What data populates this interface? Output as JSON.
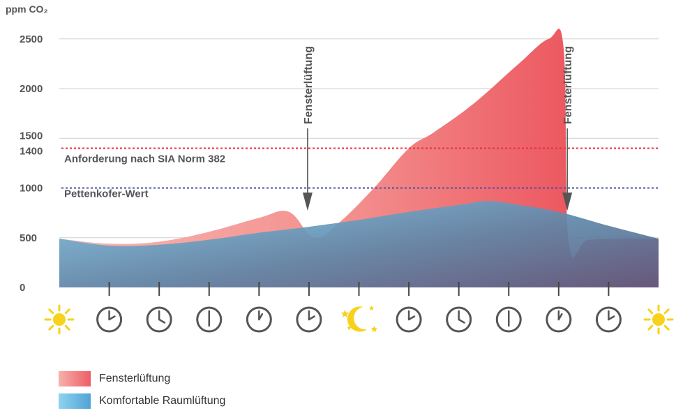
{
  "chart_data": {
    "type": "area",
    "ylabel": "ppm CO₂",
    "y_ticks": [
      0,
      500,
      1000,
      1400,
      1500,
      2000,
      2500
    ],
    "ylim": [
      0,
      2600
    ],
    "x_periods": [
      "sun",
      "clock-2",
      "clock-4",
      "clock-6",
      "clock-8",
      "clock-10",
      "night",
      "clock-2",
      "clock-4",
      "clock-6",
      "clock-8",
      "clock-10",
      "sun"
    ],
    "reference_lines": [
      {
        "label": "Anforderung nach SIA Norm 382",
        "value": 1400,
        "color": "#e8323c"
      },
      {
        "label": "Pettenkofer-Wert",
        "value": 1000,
        "color": "#4a4fa6"
      }
    ],
    "annotations": [
      {
        "text": "Fensterlüftung",
        "x_index": 5
      },
      {
        "text": "Fensterlüftung",
        "x_index": 10.2
      }
    ],
    "series": [
      {
        "name": "Fensterlüftung",
        "color": "#ef5a63",
        "points": [
          [
            0,
            490
          ],
          [
            1,
            440
          ],
          [
            2,
            460
          ],
          [
            3,
            560
          ],
          [
            4,
            700
          ],
          [
            4.6,
            760
          ],
          [
            5.1,
            500
          ],
          [
            5.6,
            650
          ],
          [
            6.3,
            1000
          ],
          [
            7,
            1400
          ],
          [
            7.5,
            1560
          ],
          [
            8.3,
            1850
          ],
          [
            9.2,
            2250
          ],
          [
            9.8,
            2500
          ],
          [
            10.1,
            2400
          ],
          [
            10.2,
            450
          ],
          [
            10.6,
            480
          ],
          [
            11.5,
            490
          ],
          [
            12,
            490
          ]
        ]
      },
      {
        "name": "Komfortable Raumlüftung",
        "color": "#5aaed8",
        "points": [
          [
            0,
            490
          ],
          [
            1,
            420
          ],
          [
            2,
            430
          ],
          [
            3,
            480
          ],
          [
            4,
            550
          ],
          [
            5,
            610
          ],
          [
            6,
            680
          ],
          [
            7,
            760
          ],
          [
            8,
            830
          ],
          [
            8.6,
            870
          ],
          [
            9.2,
            830
          ],
          [
            10,
            760
          ],
          [
            11,
            620
          ],
          [
            12,
            490
          ]
        ]
      }
    ]
  },
  "legend": {
    "items": [
      {
        "label": "Fensterlüftung"
      },
      {
        "label": "Komfortable Raumlüftung"
      }
    ]
  }
}
